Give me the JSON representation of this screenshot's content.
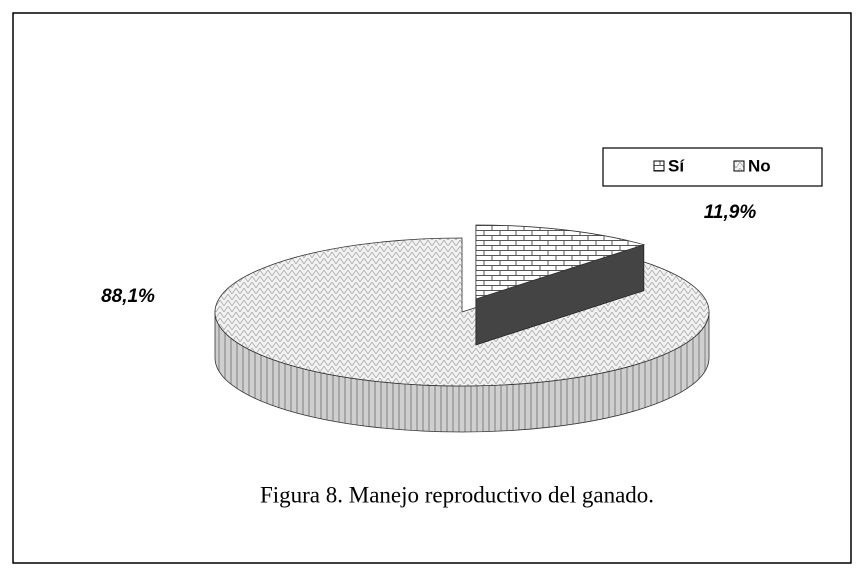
{
  "chart_data": {
    "type": "pie",
    "title": "Figura 8. Manejo reproductivo del ganado.",
    "categories": [
      "Sí",
      "No"
    ],
    "values": [
      11.9,
      88.1
    ],
    "value_labels": [
      "11,9%",
      "88,1%"
    ],
    "colors": [
      "#ffffff",
      "#f2f2f2"
    ],
    "legend": "top-right"
  }
}
